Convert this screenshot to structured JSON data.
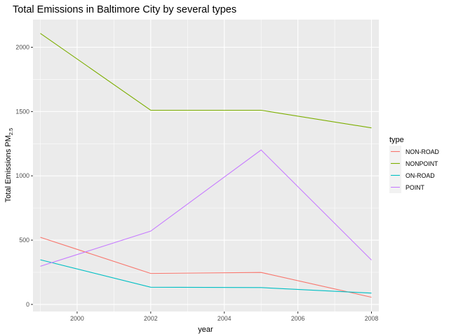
{
  "chart_data": {
    "type": "line",
    "title": "Total Emissions in Baltimore City by several types",
    "xlabel": "year",
    "ylabel_main": "Total Emissions PM",
    "ylabel_subscript": "2.5",
    "x": [
      1999,
      2002,
      2005,
      2008
    ],
    "xlim": [
      1998.8,
      2008.2
    ],
    "ylim": [
      -55,
      2215
    ],
    "x_ticks": [
      2000,
      2002,
      2004,
      2006,
      2008
    ],
    "x_tick_labels": [
      "2000",
      "2002",
      "2004",
      "2006",
      "2008"
    ],
    "y_ticks": [
      0,
      500,
      1000,
      1500,
      2000
    ],
    "y_tick_labels": [
      "0",
      "500",
      "1000",
      "1500",
      "2000"
    ],
    "grid": true,
    "legend_title": "type",
    "legend_placement": "right",
    "series": [
      {
        "name": "NON-ROAD",
        "color": "#F8766D",
        "values": [
          522,
          241,
          249,
          56
        ]
      },
      {
        "name": "NONPOINT",
        "color": "#7CAE00",
        "values": [
          2108,
          1510,
          1510,
          1373
        ]
      },
      {
        "name": "ON-ROAD",
        "color": "#00BFC4",
        "values": [
          347,
          134,
          131,
          88
        ]
      },
      {
        "name": "POINT",
        "color": "#C77CFF",
        "values": [
          297,
          570,
          1201,
          345
        ]
      }
    ]
  }
}
